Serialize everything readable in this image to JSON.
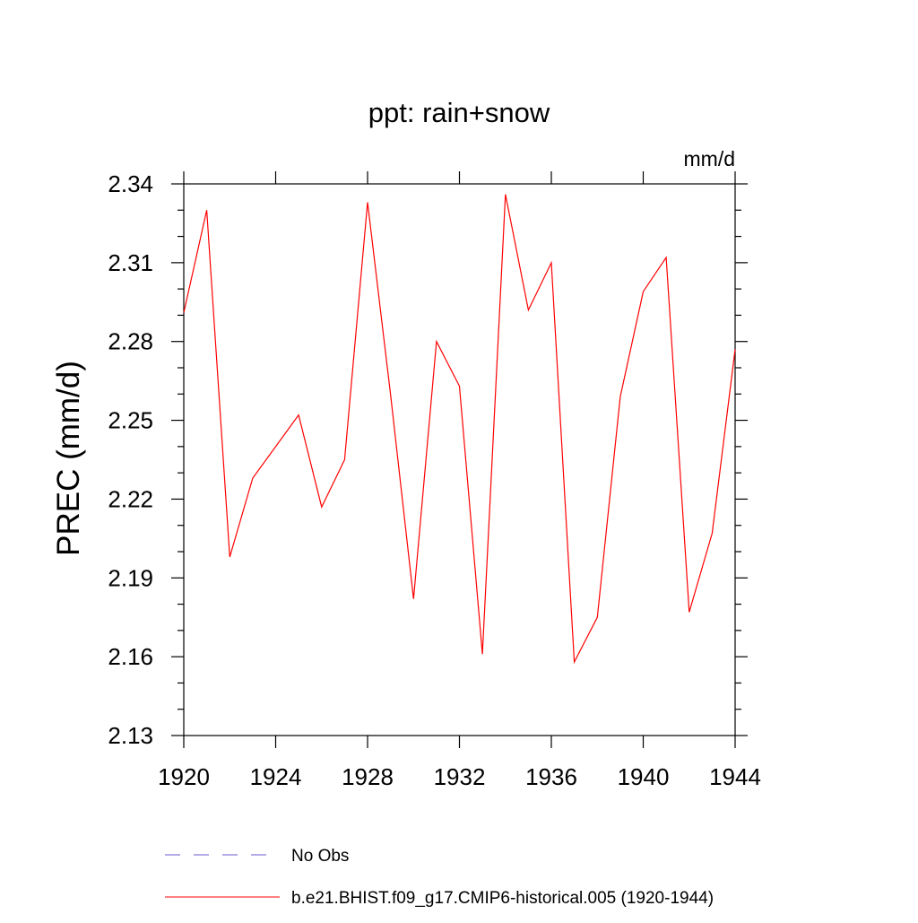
{
  "chart_data": {
    "type": "line",
    "title": "ppt: rain+snow",
    "units": "mm/d",
    "ylabel": "PREC  (mm/d)",
    "xlabel": "",
    "xlim": [
      1920,
      1944
    ],
    "ylim": [
      2.13,
      2.34
    ],
    "x_ticks": [
      1920,
      1924,
      1928,
      1932,
      1936,
      1940,
      1944
    ],
    "x_tick_labels": [
      "1920",
      "1924",
      "1928",
      "1932",
      "1936",
      "1940",
      "1944"
    ],
    "y_ticks": [
      2.13,
      2.16,
      2.19,
      2.22,
      2.25,
      2.28,
      2.31,
      2.34
    ],
    "y_tick_labels": [
      "2.13",
      "2.16",
      "2.19",
      "2.22",
      "2.25",
      "2.28",
      "2.31",
      "2.34"
    ],
    "grid": false,
    "legend_position": "bottom",
    "series": [
      {
        "name": "b.e21.BHIST.f09_g17.CMIP6-historical.005 (1920-1944)",
        "color": "#ff0000",
        "x": [
          1920,
          1921,
          1922,
          1923,
          1924,
          1925,
          1926,
          1927,
          1928,
          1929,
          1930,
          1931,
          1932,
          1933,
          1934,
          1935,
          1936,
          1937,
          1938,
          1939,
          1940,
          1941,
          1942,
          1943,
          1944
        ],
        "y": [
          2.291,
          2.33,
          2.198,
          2.228,
          2.24,
          2.252,
          2.217,
          2.235,
          2.333,
          2.26,
          2.182,
          2.28,
          2.263,
          2.161,
          2.336,
          2.292,
          2.31,
          2.158,
          2.175,
          2.259,
          2.299,
          2.312,
          2.177,
          2.207,
          2.277
        ]
      }
    ],
    "legend": [
      {
        "label": "No Obs",
        "color": "#6a5acd",
        "style": "dashed"
      },
      {
        "label": "b.e21.BHIST.f09_g17.CMIP6-historical.005 (1920-1944)",
        "color": "#ff0000",
        "style": "solid"
      }
    ]
  }
}
